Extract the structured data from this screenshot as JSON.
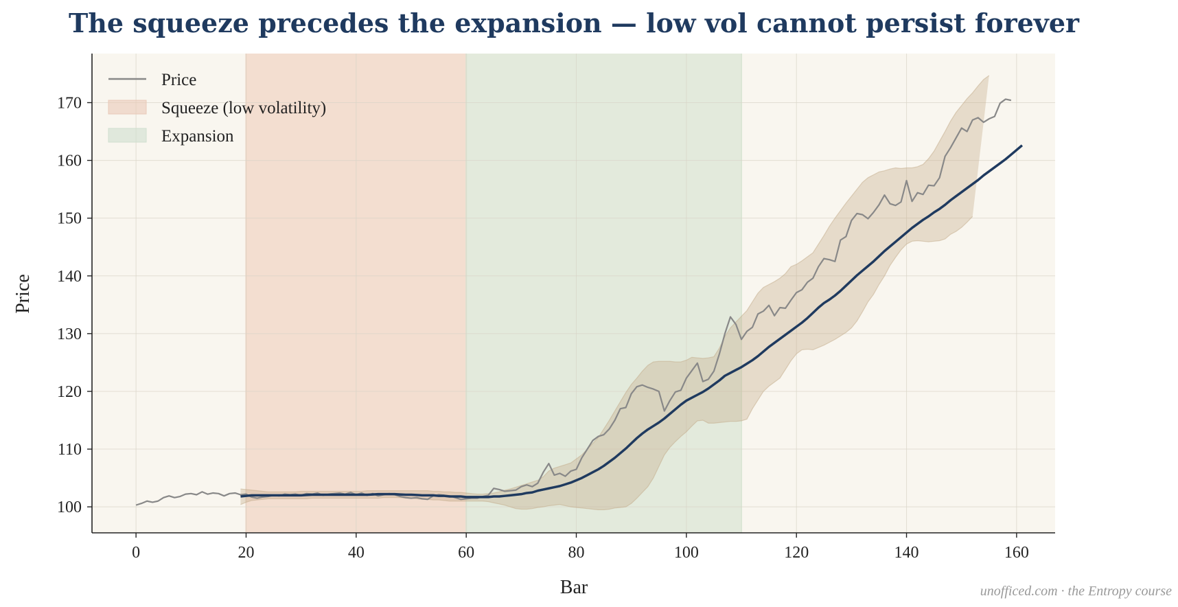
{
  "chart_data": {
    "type": "line",
    "title": "The squeeze precedes the expansion — low vol cannot persist forever",
    "xlabel": "Bar",
    "ylabel": "Price",
    "xlim": [
      -8,
      167
    ],
    "ylim": [
      95.5,
      178.5
    ],
    "xticks": [
      0,
      20,
      40,
      60,
      80,
      100,
      120,
      140,
      160
    ],
    "yticks": [
      100,
      110,
      120,
      130,
      140,
      150,
      160,
      170
    ],
    "grid": true,
    "legend_position": "top-left",
    "legend": [
      {
        "label": "Price",
        "kind": "line",
        "color": "#888888"
      },
      {
        "label": "Squeeze (low volatility)",
        "kind": "patch",
        "color": "#e9c9b8"
      },
      {
        "label": "Expansion",
        "kind": "patch",
        "color": "#cfdfcf"
      }
    ],
    "regions": [
      {
        "name": "Squeeze (low volatility)",
        "x_start": 20,
        "x_end": 60,
        "color": "#f0d5c5"
      },
      {
        "name": "Expansion",
        "x_start": 60,
        "x_end": 110,
        "color": "#dbe6d5"
      }
    ],
    "colors": {
      "price": "#888888",
      "middle": "#1f3a5f",
      "band": "#c2a988",
      "background": "#f9f6ef",
      "title": "#1f3a5f"
    },
    "series": [
      {
        "name": "Price",
        "x_start": 0,
        "values": [
          100.3,
          100.6,
          101.0,
          100.8,
          101.0,
          101.6,
          101.9,
          101.6,
          101.8,
          102.2,
          102.3,
          102.1,
          102.6,
          102.2,
          102.4,
          102.3,
          101.9,
          102.3,
          102.4,
          102.1,
          102.2,
          101.7,
          101.5,
          101.7,
          101.8,
          102.0,
          101.9,
          102.2,
          102.1,
          102.2,
          102.0,
          102.3,
          102.2,
          102.4,
          102.0,
          102.2,
          102.3,
          102.4,
          102.2,
          102.5,
          102.1,
          102.4,
          102.0,
          102.3,
          101.9,
          102.1,
          102.3,
          102.1,
          101.8,
          101.6,
          101.5,
          101.6,
          101.4,
          101.3,
          101.9,
          102.1,
          102.0,
          101.9,
          101.6,
          101.3,
          101.4,
          101.5,
          101.5,
          101.8,
          102.0,
          103.2,
          103.0,
          102.7,
          102.8,
          102.9,
          103.5,
          103.8,
          103.5,
          104.1,
          106.0,
          107.5,
          105.5,
          105.8,
          105.3,
          106.2,
          106.5,
          108.5,
          110.0,
          111.5,
          112.2,
          112.5,
          113.5,
          115.0,
          117.0,
          117.2,
          119.6,
          120.8,
          121.1,
          120.7,
          120.4,
          120.0,
          116.6,
          118.4,
          119.9,
          120.2,
          122.3,
          123.6,
          124.9,
          121.7,
          122.1,
          123.5,
          126.5,
          130.0,
          132.9,
          131.6,
          129.0,
          130.4,
          131.1,
          133.4,
          133.9,
          134.9,
          133.1,
          134.5,
          134.4,
          135.8,
          137.1,
          137.6,
          138.9,
          139.6,
          141.6,
          143.0,
          142.8,
          142.5,
          146.2,
          146.8,
          149.6,
          150.8,
          150.6,
          149.9,
          151.0,
          152.3,
          154.0,
          152.5,
          152.2,
          152.8,
          156.5,
          152.9,
          154.4,
          154.1,
          155.7,
          155.6,
          157.0,
          160.7,
          162.2,
          163.9,
          165.6,
          165.0,
          167.0,
          167.4,
          166.6,
          167.2,
          167.6,
          169.9,
          170.6,
          170.4
        ]
      },
      {
        "name": "Middle band",
        "x_start": 19,
        "values": [
          101.8,
          101.9,
          102.0,
          102.0,
          102.0,
          102.0,
          102.0,
          102.0,
          102.0,
          102.0,
          102.0,
          102.0,
          102.05,
          102.1,
          102.1,
          102.1,
          102.1,
          102.1,
          102.1,
          102.1,
          102.1,
          102.1,
          102.1,
          102.1,
          102.15,
          102.2,
          102.2,
          102.2,
          102.2,
          102.15,
          102.1,
          102.1,
          102.05,
          102.0,
          102.0,
          102.0,
          101.9,
          101.9,
          101.8,
          101.8,
          101.8,
          101.7,
          101.7,
          101.7,
          101.7,
          101.7,
          101.8,
          101.8,
          101.9,
          102.0,
          102.1,
          102.2,
          102.4,
          102.5,
          102.8,
          103.0,
          103.2,
          103.4,
          103.6,
          103.9,
          104.2,
          104.6,
          105.0,
          105.5,
          106.0,
          106.5,
          107.1,
          107.8,
          108.5,
          109.3,
          110.1,
          111.0,
          111.9,
          112.7,
          113.4,
          114.0,
          114.6,
          115.3,
          116.1,
          116.9,
          117.7,
          118.4,
          118.9,
          119.4,
          119.9,
          120.5,
          121.2,
          121.9,
          122.7,
          123.2,
          123.7,
          124.2,
          124.8,
          125.4,
          126.1,
          126.9,
          127.7,
          128.4,
          129.1,
          129.8,
          130.5,
          131.2,
          131.9,
          132.7,
          133.6,
          134.5,
          135.3,
          135.9,
          136.6,
          137.4,
          138.3,
          139.2,
          140.1,
          140.9,
          141.7,
          142.5,
          143.4,
          144.3,
          145.1,
          145.9,
          146.7,
          147.5,
          148.3,
          149.0,
          149.7,
          150.3,
          151.0,
          151.6,
          152.3,
          153.1,
          153.8,
          154.5,
          155.2,
          155.9,
          156.6,
          157.4,
          158.1,
          158.8,
          159.5,
          160.2,
          161.0,
          161.8,
          162.6
        ]
      },
      {
        "name": "Upper band",
        "x_start": 19,
        "values": [
          103.1,
          103.0,
          102.9,
          102.8,
          102.7,
          102.6,
          102.6,
          102.6,
          102.6,
          102.6,
          102.6,
          102.7,
          102.7,
          102.7,
          102.7,
          102.7,
          102.7,
          102.7,
          102.7,
          102.7,
          102.7,
          102.7,
          102.7,
          102.8,
          102.8,
          102.8,
          102.8,
          102.8,
          102.8,
          102.8,
          102.8,
          102.8,
          102.8,
          102.8,
          102.8,
          102.7,
          102.7,
          102.6,
          102.6,
          102.5,
          102.5,
          102.4,
          102.3,
          102.2,
          102.2,
          102.3,
          102.4,
          102.6,
          102.9,
          103.1,
          103.4,
          103.7,
          104.0,
          104.3,
          104.6,
          105.2,
          106.2,
          106.7,
          107.0,
          107.3,
          107.6,
          108.3,
          109.0,
          110.0,
          111.0,
          112.0,
          113.5,
          115.0,
          116.6,
          118.2,
          119.8,
          121.2,
          122.3,
          123.5,
          124.5,
          125.1,
          125.2,
          125.2,
          125.2,
          125.1,
          125.1,
          125.4,
          125.9,
          125.8,
          125.7,
          125.8,
          126.0,
          127.5,
          129.5,
          131.0,
          132.0,
          133.0,
          134.0,
          135.5,
          137.0,
          138.0,
          138.5,
          139.0,
          139.6,
          140.4,
          141.6,
          142.0,
          142.6,
          143.3,
          144.0,
          145.5,
          147.0,
          148.6,
          150.0,
          151.3,
          152.6,
          153.8,
          155.0,
          156.2,
          157.0,
          157.5,
          158.0,
          158.2,
          158.5,
          158.7,
          158.6,
          158.7,
          158.7,
          158.9,
          159.3,
          160.3,
          161.6,
          163.3,
          165.0,
          166.8,
          168.3,
          169.5,
          170.7,
          171.7,
          172.9,
          174.0,
          174.7
        ]
      },
      {
        "name": "Lower band",
        "x_start": 19,
        "values": [
          100.4,
          100.8,
          101.1,
          101.2,
          101.3,
          101.4,
          101.4,
          101.4,
          101.4,
          101.4,
          101.4,
          101.4,
          101.4,
          101.5,
          101.5,
          101.5,
          101.5,
          101.5,
          101.5,
          101.5,
          101.5,
          101.5,
          101.5,
          101.5,
          101.5,
          101.5,
          101.6,
          101.6,
          101.6,
          101.6,
          101.5,
          101.5,
          101.4,
          101.3,
          101.3,
          101.2,
          101.2,
          101.1,
          101.0,
          101.0,
          101.0,
          101.0,
          101.0,
          101.0,
          101.0,
          100.9,
          100.7,
          100.5,
          100.3,
          100.0,
          99.7,
          99.6,
          99.6,
          99.7,
          99.9,
          100.0,
          100.2,
          100.3,
          100.4,
          100.2,
          100.0,
          99.9,
          99.8,
          99.7,
          99.6,
          99.5,
          99.5,
          99.6,
          99.8,
          99.9,
          100.0,
          100.6,
          101.5,
          102.5,
          103.5,
          105.0,
          107.0,
          109.0,
          110.3,
          111.3,
          112.2,
          113.0,
          114.0,
          114.9,
          115.0,
          114.5,
          114.5,
          114.6,
          114.7,
          114.8,
          114.8,
          114.9,
          115.2,
          117.0,
          118.5,
          120.0,
          120.9,
          121.6,
          122.3,
          123.8,
          125.3,
          126.5,
          127.2,
          127.3,
          127.2,
          127.6,
          128.0,
          128.5,
          129.0,
          129.6,
          130.2,
          131.0,
          132.2,
          133.8,
          135.5,
          136.8,
          138.5,
          140.0,
          141.8,
          143.2,
          144.5,
          145.5,
          146.0,
          146.1,
          146.0,
          145.9,
          146.0,
          146.1,
          146.4,
          147.2,
          147.7,
          148.4,
          149.3,
          150.3
        ]
      }
    ]
  },
  "watermark": "unofficed.com · the Entropy course"
}
